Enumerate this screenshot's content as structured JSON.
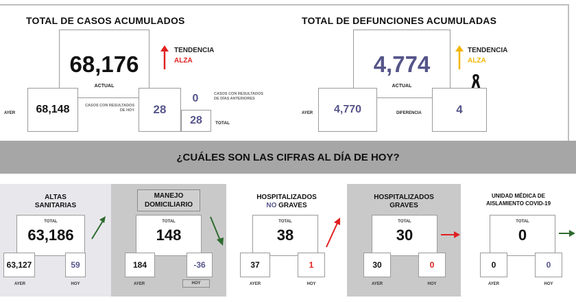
{
  "cases": {
    "title": "TOTAL DE CASOS ACUMULADOS",
    "actual_value": "68,176",
    "actual_label": "ACTUAL",
    "trend_label": "TENDENCIA",
    "trend_value": "ALZA",
    "yesterday_label": "AYER",
    "yesterday_value": "68,148",
    "today_results_label": "CASOS CON RESULTADOS DE HOY",
    "today_results_value": "28",
    "previous_days_value": "0",
    "previous_days_label": "CASOS CON RESULTADOS DE DÍAS ANTERIORES",
    "total_value": "28",
    "total_label": "TOTAL"
  },
  "deaths": {
    "title": "TOTAL DE DEFUNCIONES ACUMULADAS",
    "actual_value": "4,774",
    "actual_label": "ACTUAL",
    "trend_label": "TENDENCIA",
    "trend_value": "ALZA",
    "yesterday_label": "AYER",
    "yesterday_value": "4,770",
    "difference_label": "DIFERENCIA",
    "difference_value": "4"
  },
  "banner": {
    "question": "¿CUÁLES SON LAS CIFRAS AL DÍA DE HOY?"
  },
  "panels": [
    {
      "title_line1": "ALTAS",
      "title_line2": "SANITARIAS",
      "total_label": "TOTAL",
      "total": "63,186",
      "ayer": "63,127",
      "hoy": "59",
      "ayer_label": "AYER",
      "hoy_label": "HOY"
    },
    {
      "title_line1": "MANEJO",
      "title_line2": "DOMICILIARIO",
      "total_label": "TOTAL",
      "total": "148",
      "ayer": "184",
      "hoy": "-36",
      "ayer_label": "AYER",
      "hoy_label": "HOY"
    },
    {
      "title_line1": "HOSPITALIZADOS",
      "title_line2a": "NO",
      "title_line2b": " GRAVES",
      "total_label": "TOTAL",
      "total": "38",
      "ayer": "37",
      "hoy": "1",
      "ayer_label": "AYER",
      "hoy_label": "HOY"
    },
    {
      "title_line1": "HOSPITALIZADOS",
      "title_line2": "GRAVES",
      "total_label": "TOTAL",
      "total": "30",
      "ayer": "30",
      "hoy": "0",
      "ayer_label": "AYER",
      "hoy_label": "HOY"
    },
    {
      "title_line1": "UNIDAD MÉDICA DE",
      "title_line2": "AISLAMIENTO COVID-19",
      "total_label": "TOTAL",
      "total": "0",
      "ayer": "0",
      "hoy": "0",
      "ayer_label": "AYER",
      "hoy_label": "HOY"
    }
  ],
  "colors": {
    "purple": "#55558a",
    "red": "#e02020",
    "gold": "#f2b600",
    "green": "#2e6b2e",
    "banner": "#a6a6a6"
  }
}
